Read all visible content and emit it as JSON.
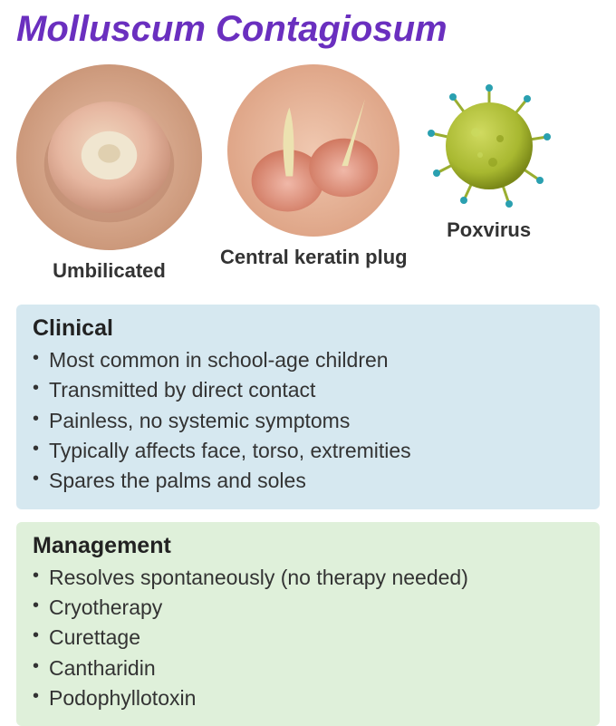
{
  "title": {
    "text": "Molluscum Contagiosum",
    "color": "#6a2fbf",
    "fontsize": 40
  },
  "images": {
    "umbilicated": {
      "caption": "Umbilicated",
      "diameter": 205,
      "skin_bg": "#d9a68a",
      "lesion_outer": "#e6b6a0",
      "lesion_inner": "#f0e0c8",
      "shadow": "#b07860"
    },
    "keratin": {
      "caption": "Central keratin plug",
      "diameter": 190,
      "skin_bg": "#e8b6a0",
      "lesion_base": "#e89a88",
      "plug_color": "#ece2b0",
      "shadow": "#c07860"
    },
    "poxvirus": {
      "caption": "Poxvirus",
      "diameter": 140,
      "body_color": "#b7c23a",
      "body_shade": "#8a9820",
      "spike_color": "#9aae30",
      "spike_tip": "#2aa0b0"
    }
  },
  "clinical": {
    "title": "Clinical",
    "bg_color": "#d6e8f0",
    "title_fontsize": 25,
    "item_fontsize": 23,
    "items": [
      "Most common in school-age children",
      "Transmitted by direct contact",
      "Painless, no systemic symptoms",
      "Typically affects face, torso, extremities",
      "Spares the palms and soles"
    ]
  },
  "management": {
    "title": "Management",
    "bg_color": "#dff0da",
    "title_fontsize": 25,
    "item_fontsize": 23,
    "items": [
      "Resolves spontaneously (no therapy needed)",
      "Cryotherapy",
      "Curettage",
      "Cantharidin",
      "Podophyllotoxin"
    ]
  }
}
